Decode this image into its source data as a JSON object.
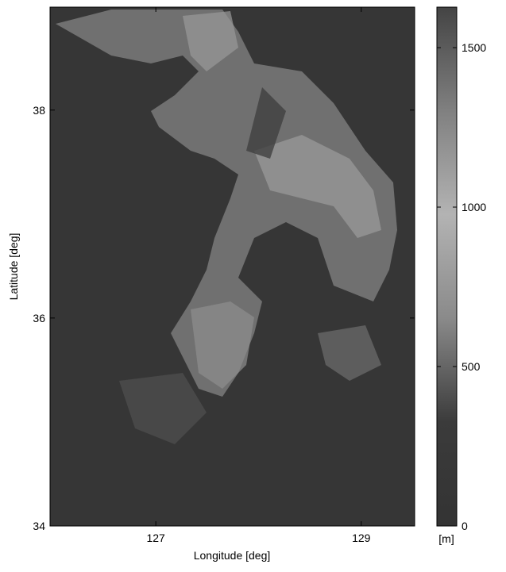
{
  "chart_data": {
    "type": "heatmap",
    "xlabel": "Longitude [deg]",
    "ylabel": "Latitude [deg]",
    "xlim": [
      125.97,
      129.52
    ],
    "xticks": [
      127,
      129
    ],
    "ylim": [
      34,
      38.99
    ],
    "yticks": [
      34,
      36,
      38
    ],
    "clim": [
      0,
      1627
    ],
    "cticks": [
      0,
      500,
      1000,
      1500
    ],
    "colorbar_label": "[m]",
    "colormap": [
      "#333333",
      "#3b3b3b",
      "#8a8a8a",
      "#b3b3b3",
      "#808080",
      "#444444"
    ]
  }
}
